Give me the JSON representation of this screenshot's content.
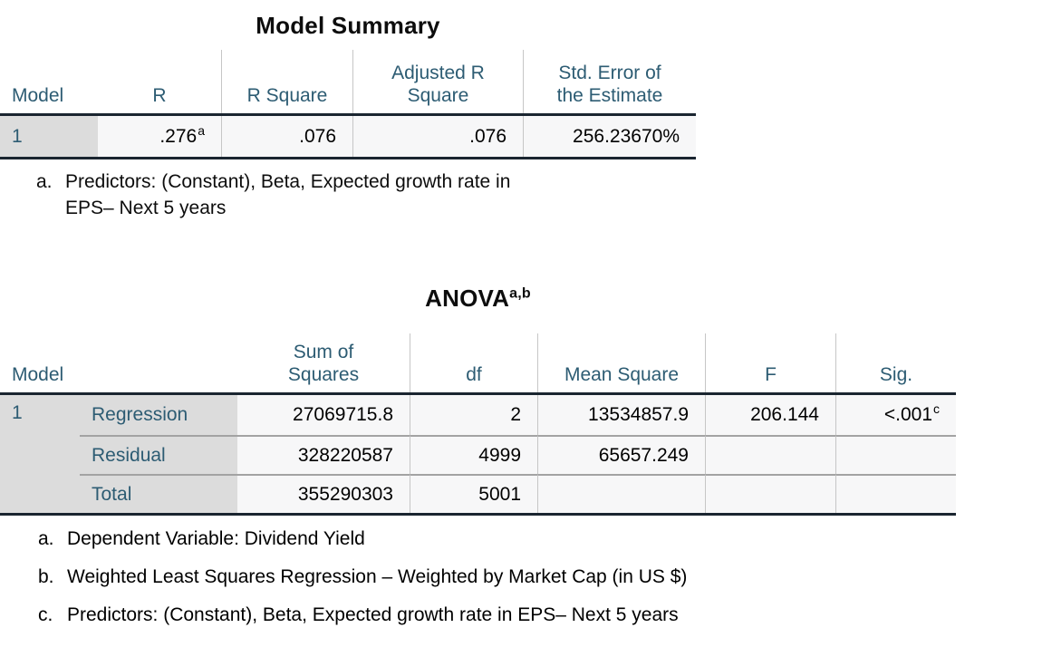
{
  "colors": {
    "page_background": "#FFFFFF",
    "header_text": "#2D5C73",
    "thick_rule": "#1A2530",
    "light_column_line": "#C6C6C6",
    "row_separator": "#A3A3A3",
    "stub_cell_background": "#DCDCDC",
    "data_cell_background": "#F7F7F8"
  },
  "model_summary": {
    "title": "Model Summary",
    "columns": [
      "Model",
      "R",
      "R Square",
      "Adjusted R\nSquare",
      "Std. Error of\nthe Estimate"
    ],
    "row": {
      "model": "1",
      "r": ".276",
      "r_sup": "a",
      "r_square": ".076",
      "adjusted_r_square": ".076",
      "std_error": "256.23670%"
    },
    "footnote": {
      "marker": "a.",
      "text": "Predictors: (Constant), Beta, Expected growth rate in\nEPS– Next 5 years"
    }
  },
  "anova": {
    "title": "ANOVA",
    "title_sup": "a,b",
    "columns": [
      "Model",
      "Sum of\nSquares",
      "df",
      "Mean Square",
      "F",
      "Sig."
    ],
    "model_value": "1",
    "rows": [
      {
        "label": "Regression",
        "sum_of_squares": "27069715.8",
        "df": "2",
        "mean_square": "13534857.9",
        "f": "206.144",
        "sig": "<.001",
        "sig_sup": "c"
      },
      {
        "label": "Residual",
        "sum_of_squares": "328220587",
        "df": "4999",
        "mean_square": "65657.249",
        "f": "",
        "sig": "",
        "sig_sup": ""
      },
      {
        "label": "Total",
        "sum_of_squares": "355290303",
        "df": "5001",
        "mean_square": "",
        "f": "",
        "sig": "",
        "sig_sup": ""
      }
    ],
    "footnotes": [
      {
        "marker": "a.",
        "text": "Dependent Variable: Dividend Yield"
      },
      {
        "marker": "b.",
        "text": "Weighted Least Squares Regression – Weighted by Market Cap (in US $)"
      },
      {
        "marker": "c.",
        "text": "Predictors: (Constant), Beta, Expected growth rate in EPS– Next 5 years"
      }
    ]
  }
}
